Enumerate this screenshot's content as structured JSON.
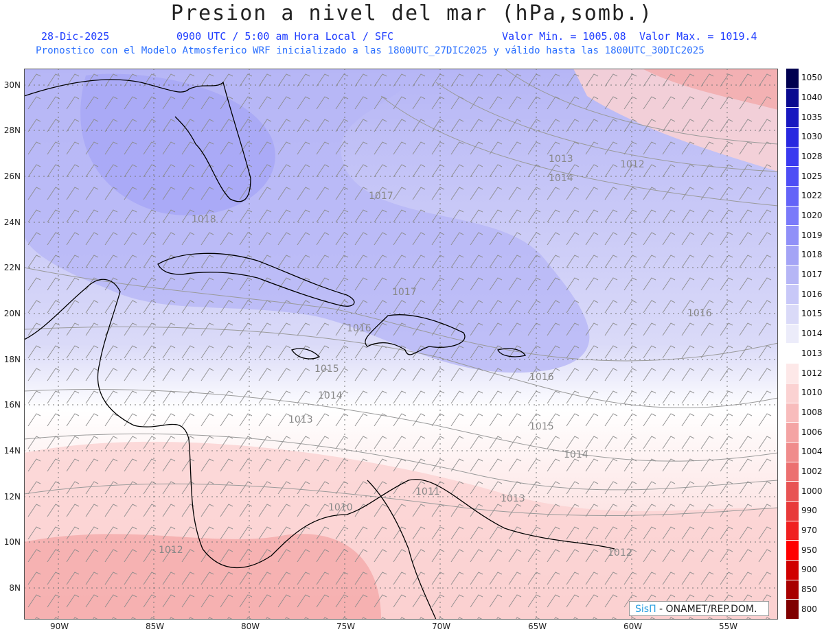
{
  "title": "Presion a nivel del mar (hPa,somb.)",
  "header": {
    "date": "28-Dic-2025",
    "time": "0900 UTC / 5:00 am Hora Local / SFC",
    "min": "Valor Min. = 1005.08",
    "max": "Valor Max. = 1019.4",
    "model_line": "Pronostico con el Modelo Atmosferico WRF inicializado a las 1800UTC_27DIC2025 y válido hasta las  1800UTC_30DIC2025"
  },
  "lat_labels": [
    "30N",
    "28N",
    "26N",
    "24N",
    "22N",
    "20N",
    "18N",
    "16N",
    "14N",
    "12N",
    "10N",
    "8N"
  ],
  "lon_labels": [
    "90W",
    "85W",
    "80W",
    "75W",
    "70W",
    "65W",
    "60W",
    "55W"
  ],
  "colorbar": {
    "labels": [
      "1050",
      "1040",
      "1035",
      "1030",
      "1028",
      "1025",
      "1022",
      "1020",
      "1019",
      "1018",
      "1017",
      "1016",
      "1015",
      "1014",
      "1013",
      "1012",
      "1010",
      "1008",
      "1006",
      "1004",
      "1002",
      "1000",
      "990",
      "970",
      "950",
      "900",
      "850",
      "800"
    ],
    "colors": [
      "#000050",
      "#0a0a90",
      "#1818c0",
      "#2828e0",
      "#3a3af0",
      "#4e4ef5",
      "#6464f8",
      "#7a7afa",
      "#9090f8",
      "#a4a4f6",
      "#b6b6f6",
      "#c8c8f8",
      "#dadaf8",
      "#ececfa",
      "#ffffff",
      "#fde8e8",
      "#fbd2d2",
      "#f8bcbc",
      "#f4a4a4",
      "#f08c8c",
      "#ec7070",
      "#e85454",
      "#e83a3a",
      "#f02020",
      "#ff0000",
      "#d00000",
      "#a80000",
      "#800000"
    ]
  },
  "isobar_labels": [
    "1013",
    "1012",
    "1014",
    "1017",
    "1018",
    "1017",
    "1016",
    "1015",
    "1016",
    "1014",
    "1013",
    "1016",
    "1015",
    "1014",
    "1013",
    "1012",
    "1010",
    "1011",
    "1012"
  ],
  "credit": {
    "logo": "SisΠ",
    "text": " - ONAMET/REP.DOM."
  }
}
